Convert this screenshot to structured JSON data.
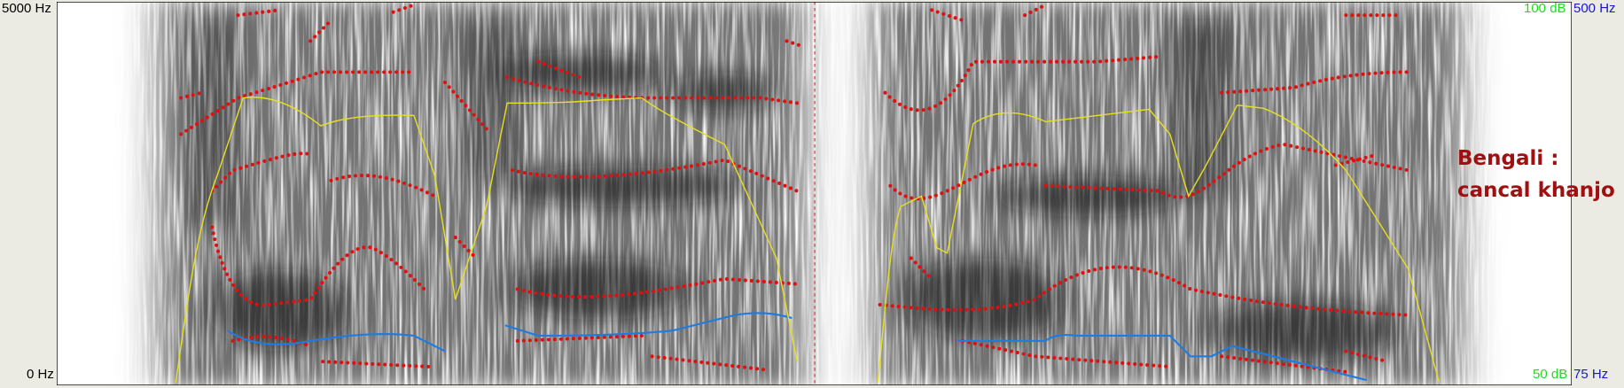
{
  "left_axis": {
    "top": "5000 Hz",
    "bottom": "0 Hz"
  },
  "right_axis": {
    "intensity_top": "100 dB",
    "pitch_top": "500 Hz",
    "intensity_bottom": "50 dB",
    "pitch_bottom": "75 Hz"
  },
  "annotation": [
    "Bengali :",
    "cancal khanjo"
  ]
}
